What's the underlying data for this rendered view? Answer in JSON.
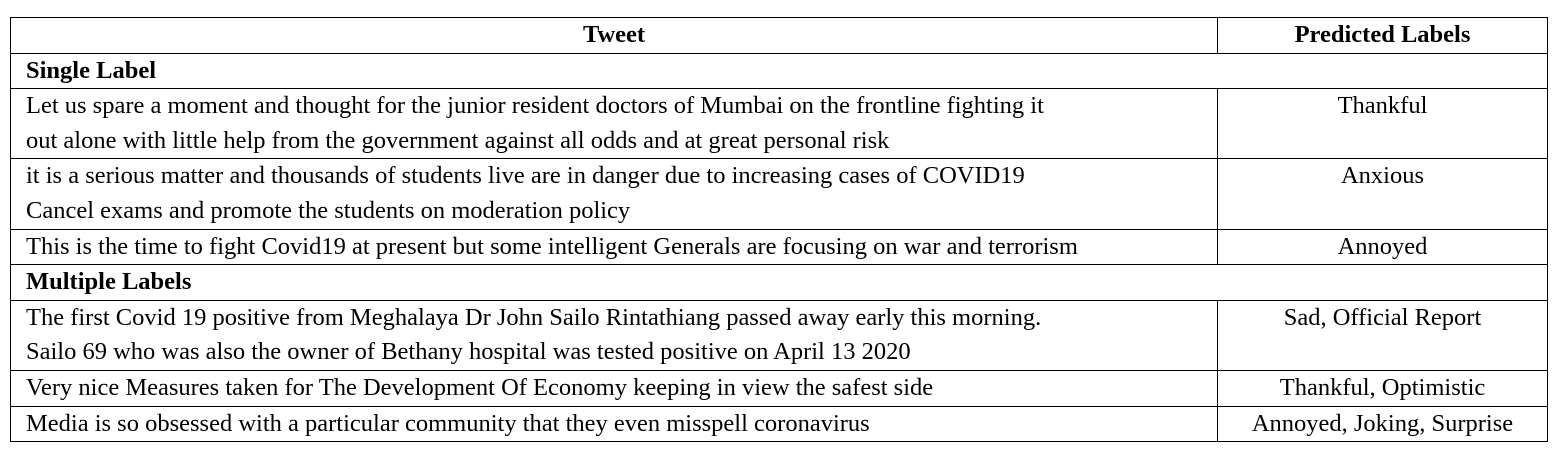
{
  "table": {
    "headers": {
      "tweet": "Tweet",
      "labels": "Predicted Labels"
    },
    "sections": [
      {
        "title": "Single Label",
        "rows": [
          {
            "tweet_lines": [
              "Let us spare a moment and thought for the junior resident doctors of Mumbai on the frontline fighting it",
              "out alone with little help from the government against all odds and at great personal risk"
            ],
            "labels": "Thankful"
          },
          {
            "tweet_lines": [
              "it is a serious matter and thousands of students live are in danger due to increasing cases of COVID19",
              "Cancel exams and promote the students on moderation policy"
            ],
            "labels": "Anxious"
          },
          {
            "tweet_lines": [
              "This is the time to fight Covid19 at present but some intelligent Generals are focusing on war and terrorism"
            ],
            "labels": "Annoyed"
          }
        ]
      },
      {
        "title": "Multiple Labels",
        "rows": [
          {
            "tweet_lines": [
              "The first Covid 19 positive from Meghalaya Dr John Sailo Rintathiang passed away early this morning.",
              "Sailo 69 who was also the owner of Bethany hospital was tested positive on April 13 2020"
            ],
            "labels": "Sad, Official Report"
          },
          {
            "tweet_lines": [
              "Very nice Measures taken for The Development Of Economy keeping in view the safest side"
            ],
            "labels": "Thankful, Optimistic"
          },
          {
            "tweet_lines": [
              "Media is so obsessed with a particular community that they even misspell coronavirus"
            ],
            "labels": "Annoyed, Joking, Surprise"
          }
        ]
      }
    ]
  }
}
